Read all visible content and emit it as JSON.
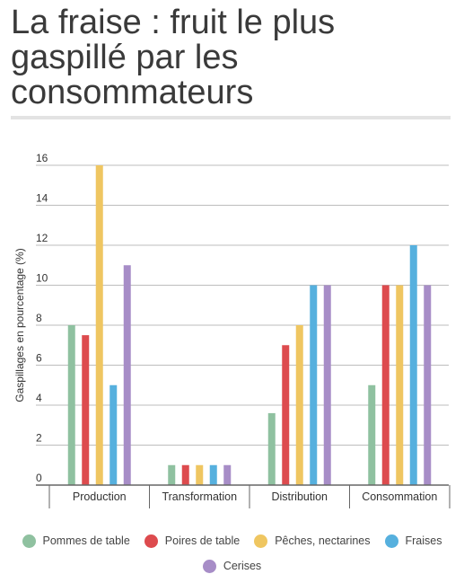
{
  "title": "La fraise : fruit le plus gaspillé par les consommateurs",
  "chart_data": {
    "type": "bar",
    "categories": [
      "Production",
      "Transformation",
      "Distribution",
      "Consommation"
    ],
    "ylabel": "Gaspillages en pourcentage (%)",
    "xlabel": "",
    "ylim": [
      0,
      16
    ],
    "yticks": [
      0,
      2,
      4,
      6,
      8,
      10,
      12,
      14,
      16
    ],
    "grid": true,
    "legend_position": "bottom",
    "series": [
      {
        "name": "Pommes de table",
        "color": "#8fc1a0",
        "values": [
          8,
          1,
          3.6,
          5
        ]
      },
      {
        "name": "Poires de table",
        "color": "#dd4b4e",
        "values": [
          7.5,
          1,
          7,
          10
        ]
      },
      {
        "name": "Pêches, nectarines",
        "color": "#efc661",
        "values": [
          16,
          1,
          8,
          10
        ]
      },
      {
        "name": "Fraises",
        "color": "#56b0de",
        "values": [
          5,
          1,
          10,
          12
        ]
      },
      {
        "name": "Cerises",
        "color": "#a78dc7",
        "values": [
          11,
          1,
          10,
          10
        ]
      }
    ]
  }
}
